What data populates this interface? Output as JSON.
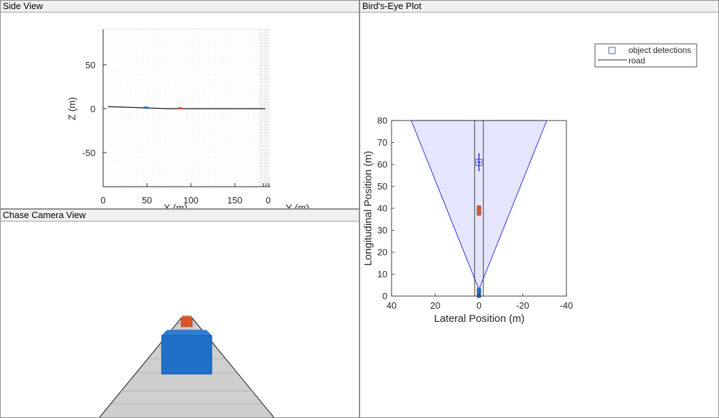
{
  "panels": {
    "side_view": {
      "title": "Side View"
    },
    "chase_camera": {
      "title": "Chase Camera View"
    },
    "birds_eye": {
      "title": "Bird's-Eye Plot"
    }
  },
  "side_view": {
    "ylabel": "Z (m)",
    "xlabel": "X (m)",
    "ylabel2": "Y (m)",
    "yticks": [
      "50",
      "0",
      "-50"
    ],
    "xticks": [
      "0",
      "50",
      "100",
      "150",
      "0"
    ]
  },
  "legend": {
    "detections_label": "object detections",
    "road_label": "road"
  },
  "colors": {
    "ego": "#1f6fc6",
    "target": "#d9582a",
    "detection": "#1f2fd0",
    "coverage_fill": "#dcdcff",
    "road_surface": "#cfcfcf"
  },
  "chart_data": {
    "type": "scatter",
    "xlabel": "Lateral Position (m)",
    "ylabel": "Longitudinal Position (m)",
    "xlim": [
      40,
      -40
    ],
    "ylim": [
      0,
      80
    ],
    "xticks": [
      40,
      20,
      0,
      -20,
      -40
    ],
    "yticks": [
      0,
      10,
      20,
      30,
      40,
      50,
      60,
      70,
      80
    ],
    "coverage_area": [
      [
        0,
        3
      ],
      [
        31,
        80
      ],
      [
        -31,
        80
      ]
    ],
    "road_edges": [
      [
        2,
        0,
        2,
        80
      ],
      [
        -2,
        0,
        -2,
        80
      ]
    ],
    "series": [
      {
        "name": "object detections",
        "x": [
          0
        ],
        "y": [
          61
        ]
      }
    ],
    "vehicles": [
      {
        "x": 0,
        "y": 1.5,
        "length": 4.5,
        "width": 1.8,
        "kind": "ego"
      },
      {
        "x": 0,
        "y": 39,
        "length": 4.5,
        "width": 1.8,
        "kind": "target"
      }
    ]
  }
}
